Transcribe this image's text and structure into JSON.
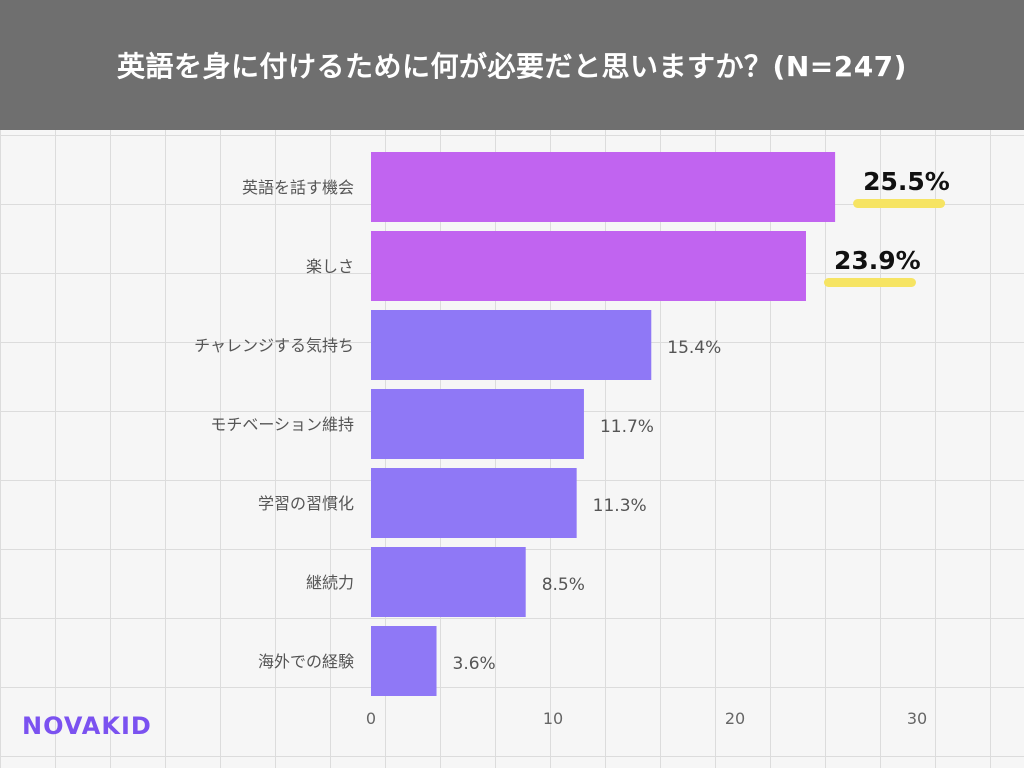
{
  "title": "英語を身に付けるために何が必要だと思いますか？(N=247)",
  "logo_text": "NOVAKID",
  "colors": {
    "header_bg": "#6f6f6f",
    "highlight_bar": "#c164f0",
    "normal_bar": "#8f78f6",
    "highlight_underline": "#f6e463",
    "grid": "#dcdcdc"
  },
  "chart_data": {
    "type": "bar",
    "orientation": "horizontal",
    "title": "英語を身に付けるために何が必要だと思いますか？(N=247)",
    "categories": [
      "英語を話す機会",
      "楽しさ",
      "チャレンジする気持ち",
      "モチベーション維持",
      "学習の習慣化",
      "継続力",
      "海外での経験"
    ],
    "values": [
      25.5,
      23.9,
      15.4,
      11.7,
      11.3,
      8.5,
      3.6
    ],
    "value_labels": [
      "25.5%",
      "23.9%",
      "15.4%",
      "11.7%",
      "11.3%",
      "8.5%",
      "3.6%"
    ],
    "highlighted": [
      true,
      true,
      false,
      false,
      false,
      false,
      false
    ],
    "xlim": [
      0,
      30
    ],
    "xticks": [
      0,
      10,
      20,
      30
    ],
    "grid": true
  }
}
